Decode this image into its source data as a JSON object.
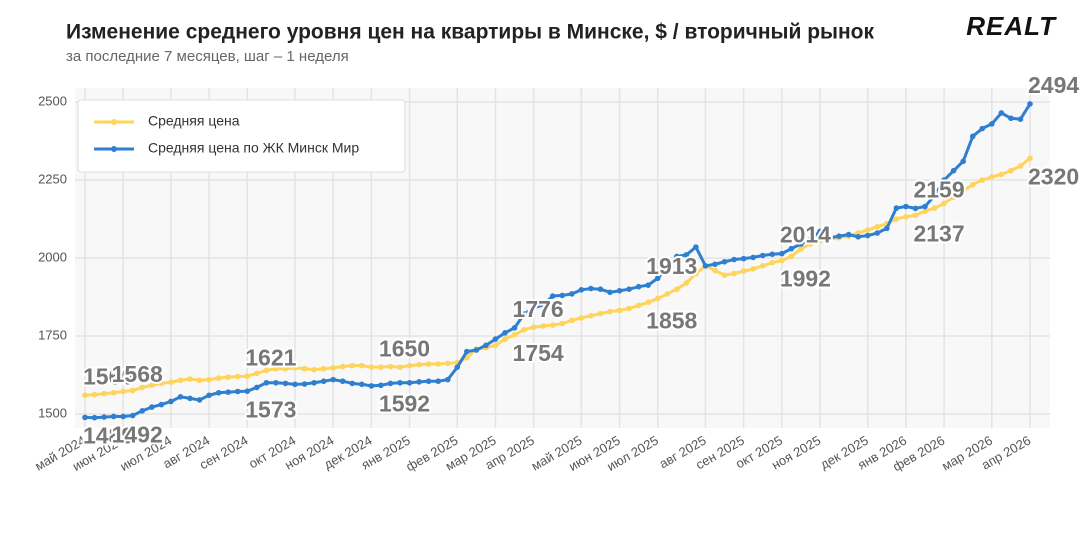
{
  "chart_data": {
    "type": "line",
    "title": "Изменение среднего уровня цен на квартиры в Минске, $ / вторичный рынок",
    "subtitle": "за последние 7 месяцев, шаг – 1 неделя",
    "logo": "REALT",
    "categories": [
      "май 2024",
      null,
      null,
      null,
      "июн 2024",
      null,
      null,
      null,
      null,
      "июл 2024",
      null,
      null,
      null,
      "авг 2024",
      null,
      null,
      null,
      "сен 2024",
      null,
      null,
      null,
      null,
      "окт 2024",
      null,
      null,
      null,
      "ноя 2024",
      null,
      null,
      null,
      "дек 2024",
      null,
      null,
      null,
      "янв 2025",
      null,
      null,
      null,
      null,
      "фев 2025",
      null,
      null,
      null,
      "мар 2025",
      null,
      null,
      null,
      "апр 2025",
      null,
      null,
      null,
      null,
      "май 2025",
      null,
      null,
      null,
      "июн 2025",
      null,
      null,
      null,
      "июл 2025",
      null,
      null,
      null,
      null,
      "авг 2025",
      null,
      null,
      null,
      "сен 2025",
      null,
      null,
      null,
      "окт 2025",
      null,
      null,
      null,
      "ноя 2025",
      null,
      null,
      null,
      null,
      "дек 2025",
      null,
      null,
      null,
      "янв 2026",
      null,
      null,
      null,
      "фев 2026",
      null,
      null,
      null,
      null,
      "мар 2026",
      null,
      null,
      null,
      "апр 2026"
    ],
    "series": [
      {
        "name": "Средняя цена",
        "color": "#ffd45a",
        "values": [
          1560,
          1562,
          1565,
          1568,
          1572,
          1575,
          1585,
          1592,
          1598,
          1602,
          1608,
          1612,
          1608,
          1610,
          1615,
          1618,
          1620,
          1621,
          1630,
          1640,
          1645,
          1645,
          1648,
          1645,
          1642,
          1645,
          1648,
          1652,
          1655,
          1655,
          1650,
          1650,
          1652,
          1650,
          1655,
          1658,
          1660,
          1660,
          1662,
          1665,
          1680,
          1708,
          1712,
          1720,
          1740,
          1754,
          1770,
          1778,
          1782,
          1785,
          1790,
          1800,
          1808,
          1815,
          1822,
          1828,
          1832,
          1838,
          1848,
          1858,
          1870,
          1885,
          1900,
          1920,
          1950,
          1975,
          1960,
          1945,
          1950,
          1958,
          1965,
          1975,
          1985,
          1992,
          2005,
          2030,
          2045,
          2055,
          2060,
          2065,
          2070,
          2080,
          2090,
          2100,
          2110,
          2125,
          2132,
          2137,
          2150,
          2160,
          2175,
          2195,
          2215,
          2235,
          2250,
          2260,
          2268,
          2280,
          2295,
          2320
        ]
      },
      {
        "name": "Средняя цена по ЖК Минск Мир",
        "color": "#2f7fd0",
        "values": [
          1489,
          1488,
          1490,
          1492,
          1492,
          1495,
          1510,
          1522,
          1530,
          1540,
          1555,
          1550,
          1545,
          1560,
          1568,
          1570,
          1572,
          1573,
          1585,
          1600,
          1600,
          1598,
          1595,
          1596,
          1600,
          1605,
          1610,
          1605,
          1598,
          1595,
          1590,
          1592,
          1598,
          1600,
          1600,
          1603,
          1605,
          1605,
          1610,
          1650,
          1700,
          1705,
          1720,
          1740,
          1760,
          1776,
          1820,
          1840,
          1850,
          1878,
          1880,
          1885,
          1898,
          1902,
          1900,
          1890,
          1895,
          1900,
          1908,
          1913,
          1935,
          1970,
          2005,
          2010,
          2035,
          1975,
          1980,
          1988,
          1995,
          1998,
          2002,
          2008,
          2012,
          2014,
          2030,
          2045,
          2060,
          2085,
          2065,
          2070,
          2075,
          2068,
          2072,
          2080,
          2095,
          2160,
          2165,
          2159,
          2165,
          2200,
          2250,
          2280,
          2310,
          2390,
          2415,
          2430,
          2465,
          2448,
          2445,
          2494
        ]
      }
    ],
    "ylim": [
      1455,
      2545
    ],
    "yticks": [
      1500,
      1750,
      2000,
      2250,
      2500
    ],
    "grid": true,
    "legend": "upper left"
  }
}
